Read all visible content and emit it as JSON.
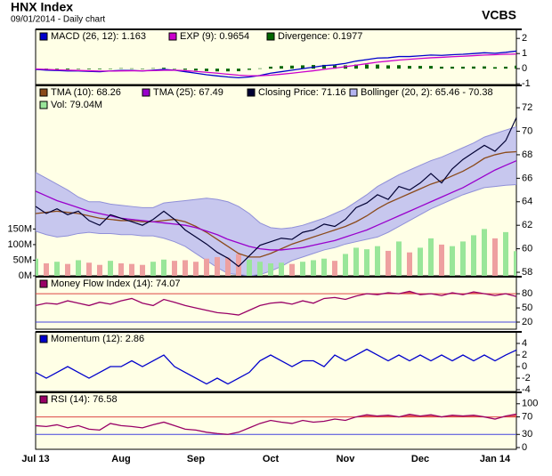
{
  "header": {
    "title": "HNX Index",
    "subtitle": "09/01/2014 - Daily chart",
    "source": "VCBS"
  },
  "chart_data": [
    {
      "type": "line",
      "background": "#ffffe6",
      "ylim": [
        -1.05,
        2.6
      ],
      "yticks": [
        2,
        1,
        0,
        -1
      ],
      "series": [
        {
          "name": "MACD (26, 12): 1.163",
          "color": "#0000cc",
          "style": "line",
          "values": [
            -0.05,
            -0.1,
            -0.12,
            -0.15,
            -0.15,
            -0.18,
            -0.2,
            -0.15,
            -0.12,
            -0.12,
            -0.15,
            -0.1,
            -0.05,
            -0.1,
            -0.2,
            -0.3,
            -0.4,
            -0.48,
            -0.55,
            -0.6,
            -0.55,
            -0.45,
            -0.3,
            -0.2,
            -0.1,
            0.0,
            0.1,
            0.2,
            0.25,
            0.35,
            0.5,
            0.6,
            0.7,
            0.72,
            0.8,
            0.8,
            0.85,
            0.9,
            0.88,
            0.92,
            0.95,
            1.0,
            1.05,
            1.02,
            1.08,
            1.163
          ]
        },
        {
          "name": "EXP (9): 0.9654",
          "color": "#cc00cc",
          "style": "line",
          "values": [
            -0.02,
            -0.05,
            -0.08,
            -0.1,
            -0.12,
            -0.14,
            -0.16,
            -0.16,
            -0.15,
            -0.14,
            -0.14,
            -0.13,
            -0.11,
            -0.1,
            -0.13,
            -0.18,
            -0.24,
            -0.3,
            -0.37,
            -0.43,
            -0.47,
            -0.47,
            -0.43,
            -0.37,
            -0.3,
            -0.22,
            -0.14,
            -0.05,
            0.04,
            0.13,
            0.23,
            0.33,
            0.43,
            0.5,
            0.57,
            0.62,
            0.67,
            0.72,
            0.75,
            0.79,
            0.82,
            0.86,
            0.9,
            0.92,
            0.95,
            0.9654
          ]
        },
        {
          "name": "Divergence: 0.1977",
          "color": "#006600",
          "style": "bar",
          "values": [
            -0.03,
            -0.05,
            -0.04,
            -0.05,
            -0.03,
            -0.04,
            -0.04,
            0.01,
            0.03,
            0.02,
            -0.01,
            0.03,
            0.06,
            0,
            -0.07,
            -0.12,
            -0.16,
            -0.18,
            -0.18,
            -0.17,
            -0.08,
            0.02,
            0.13,
            0.17,
            0.2,
            0.22,
            0.24,
            0.25,
            0.21,
            0.22,
            0.27,
            0.27,
            0.27,
            0.22,
            0.23,
            0.18,
            0.18,
            0.18,
            0.13,
            0.13,
            0.13,
            0.14,
            0.15,
            0.1,
            0.13,
            0.1977
          ]
        }
      ]
    },
    {
      "type": "line",
      "background": "#ffffe6",
      "ylim": [
        57.7,
        73.9
      ],
      "yticks": [
        72,
        70,
        68,
        66,
        64,
        62,
        60,
        58
      ],
      "y2lim": [
        0,
        610
      ],
      "y2ticks": [
        {
          "value": 150,
          "label": "150M"
        },
        {
          "value": 100,
          "label": "100M"
        },
        {
          "value": 50,
          "label": "50M"
        },
        {
          "value": 0,
          "label": "0M"
        }
      ],
      "series": [
        {
          "name": "TMA (10): 68.26",
          "color": "#8b4a1a",
          "style": "line",
          "values": [
            63.0,
            63.1,
            63.2,
            63.1,
            63.0,
            62.8,
            62.6,
            62.5,
            62.4,
            62.4,
            62.3,
            62.3,
            62.4,
            62.5,
            62.3,
            61.9,
            61.4,
            60.8,
            60.2,
            59.6,
            59.3,
            59.3,
            59.6,
            60.0,
            60.4,
            60.7,
            61.0,
            61.3,
            61.6,
            61.9,
            62.3,
            62.8,
            63.4,
            63.9,
            64.3,
            64.7,
            65.1,
            65.5,
            65.8,
            66.2,
            66.6,
            67.1,
            67.7,
            68.0,
            68.2,
            68.26
          ]
        },
        {
          "name": "TMA (25): 67.49",
          "color": "#9900cc",
          "style": "line",
          "values": [
            64.9,
            64.5,
            64.1,
            63.8,
            63.5,
            63.2,
            63.0,
            62.8,
            62.6,
            62.5,
            62.4,
            62.3,
            62.2,
            62.1,
            62.0,
            61.8,
            61.5,
            61.2,
            60.8,
            60.5,
            60.2,
            60.0,
            59.9,
            59.9,
            60.0,
            60.1,
            60.3,
            60.5,
            60.7,
            61.0,
            61.3,
            61.6,
            62.0,
            62.4,
            62.8,
            63.2,
            63.6,
            64.0,
            64.4,
            64.8,
            65.2,
            65.7,
            66.2,
            66.7,
            67.1,
            67.49
          ]
        },
        {
          "name": "Closing Price: 71.16",
          "color": "#000033",
          "style": "close",
          "values": [
            63.6,
            63.0,
            63.4,
            62.9,
            63.2,
            62.4,
            62.0,
            62.9,
            62.6,
            62.3,
            62.0,
            62.5,
            63.2,
            62.5,
            61.6,
            61.0,
            60.4,
            59.7,
            59.2,
            58.5,
            59.4,
            60.3,
            60.6,
            60.9,
            60.8,
            61.4,
            61.6,
            62.1,
            61.9,
            62.5,
            63.5,
            63.9,
            64.6,
            64.2,
            65.3,
            65.0,
            65.6,
            66.4,
            65.6,
            66.8,
            67.6,
            68.2,
            68.8,
            68.3,
            69.2,
            71.16
          ]
        },
        {
          "name": "Bollinger (20, 2): 65.46 - 70.38",
          "color": "#b4b4f0",
          "style": "band",
          "upper": [
            66.5,
            66.0,
            65.5,
            65.0,
            64.4,
            64.0,
            64.0,
            63.8,
            63.7,
            63.6,
            63.5,
            63.5,
            63.9,
            64.0,
            64.1,
            64.2,
            64.3,
            64.2,
            64.0,
            63.6,
            63.0,
            62.2,
            61.8,
            61.7,
            61.8,
            62.0,
            62.3,
            62.6,
            63.0,
            63.4,
            64.0,
            64.6,
            65.3,
            65.8,
            66.3,
            66.7,
            67.1,
            67.5,
            67.8,
            68.2,
            68.6,
            69.0,
            69.5,
            69.8,
            70.1,
            70.38
          ],
          "lower": [
            61.5,
            61.2,
            61.0,
            61.1,
            61.3,
            61.4,
            61.3,
            61.3,
            61.2,
            61.2,
            61.1,
            61.1,
            60.9,
            60.6,
            60.2,
            59.6,
            59.0,
            58.4,
            57.9,
            57.8,
            57.7,
            57.8,
            58.1,
            58.5,
            59.0,
            59.3,
            59.6,
            59.9,
            60.1,
            60.4,
            60.6,
            60.8,
            61.0,
            61.4,
            61.9,
            62.4,
            62.9,
            63.4,
            63.8,
            64.2,
            64.6,
            64.9,
            65.2,
            65.3,
            65.4,
            65.46
          ]
        },
        {
          "name": "Vol: 79.04M",
          "color": "#99e699",
          "down_color": "#eea0a0",
          "style": "volume",
          "axis": "y2",
          "values": [
            55,
            40,
            45,
            38,
            50,
            42,
            35,
            48,
            40,
            38,
            35,
            45,
            52,
            48,
            50,
            45,
            55,
            60,
            58,
            70,
            52,
            45,
            40,
            42,
            38,
            45,
            50,
            55,
            48,
            70,
            90,
            85,
            95,
            80,
            110,
            75,
            90,
            120,
            100,
            95,
            110,
            130,
            150,
            120,
            140,
            79.04
          ]
        }
      ]
    },
    {
      "type": "line",
      "background": "#ffffe6",
      "ylim": [
        5,
        116
      ],
      "yticks": [
        80,
        50,
        20
      ],
      "levels": [
        {
          "value": 80,
          "color": "#dd4444",
          "fill": "above"
        },
        {
          "value": 20,
          "color": "#4444dd"
        }
      ],
      "series": [
        {
          "name": "Money Flow Index (14): 74.07",
          "color": "#990066",
          "style": "line",
          "values": [
            55,
            60,
            58,
            65,
            60,
            55,
            62,
            58,
            65,
            70,
            60,
            55,
            68,
            62,
            55,
            50,
            45,
            40,
            38,
            35,
            45,
            55,
            60,
            62,
            58,
            65,
            60,
            70,
            72,
            68,
            75,
            80,
            78,
            82,
            80,
            85,
            78,
            80,
            76,
            82,
            78,
            84,
            80,
            76,
            80,
            74.07
          ]
        }
      ]
    },
    {
      "type": "line",
      "background": "#ffffe6",
      "ylim": [
        -4.3,
        6
      ],
      "yticks": [
        4,
        2,
        0,
        -2,
        -4
      ],
      "series": [
        {
          "name": "Momentum (12): 2.86",
          "color": "#0000cc",
          "style": "line",
          "values": [
            -1,
            -2,
            -1,
            0,
            -1,
            -2,
            -1,
            0,
            0,
            1,
            0,
            1,
            2,
            0,
            -1,
            -2,
            -3,
            -2,
            -3,
            -2,
            -1,
            1,
            2,
            1,
            0,
            1,
            1,
            0,
            2,
            1,
            2,
            3,
            2,
            1,
            2,
            1,
            2,
            1,
            2,
            1,
            2,
            1,
            2,
            1,
            2,
            2.86
          ]
        }
      ]
    },
    {
      "type": "line",
      "background": "#ffffe6",
      "ylim": [
        -4,
        126
      ],
      "yticks": [
        100,
        70,
        30,
        0
      ],
      "levels": [
        {
          "value": 70,
          "color": "#dd4444",
          "fill": "above"
        },
        {
          "value": 30,
          "color": "#4444dd"
        }
      ],
      "categories": [
        "Jul 13",
        null,
        null,
        null,
        null,
        null,
        null,
        null,
        "Aug",
        null,
        null,
        null,
        null,
        null,
        null,
        "Sep",
        null,
        null,
        null,
        null,
        null,
        null,
        "Oct",
        null,
        null,
        null,
        null,
        null,
        null,
        "Nov",
        null,
        null,
        null,
        null,
        null,
        null,
        "Dec",
        null,
        null,
        null,
        null,
        null,
        null,
        "Jan 14",
        null,
        null
      ],
      "series": [
        {
          "name": "RSI (14): 76.58",
          "color": "#990066",
          "style": "line",
          "values": [
            50,
            48,
            52,
            45,
            50,
            42,
            40,
            55,
            50,
            48,
            45,
            52,
            58,
            50,
            42,
            40,
            35,
            32,
            30,
            35,
            45,
            55,
            62,
            58,
            55,
            62,
            58,
            60,
            65,
            62,
            70,
            75,
            72,
            74,
            70,
            76,
            72,
            75,
            70,
            74,
            72,
            74,
            70,
            65,
            72,
            76.58
          ]
        }
      ]
    }
  ]
}
